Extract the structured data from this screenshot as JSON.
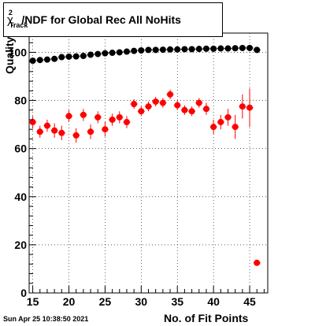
{
  "title": {
    "chi": "χ",
    "sup": "2",
    "sub": "Track",
    "rest": "/NDF for Global Rec All NoHits"
  },
  "ylabel": "Quality",
  "xlabel": "No. of Fit Points",
  "timestamp": "Sun Apr 25 10:38:50 2021",
  "chart_data": {
    "type": "scatter",
    "xlim": [
      14.5,
      47.5
    ],
    "ylim": [
      0,
      108
    ],
    "xticks": [
      15,
      20,
      25,
      30,
      35,
      40,
      45
    ],
    "yticks": [
      0,
      20,
      40,
      60,
      80,
      100
    ],
    "grid": true,
    "series": [
      {
        "color": "#000000",
        "points": [
          {
            "x": 15,
            "y": 96.5,
            "err": 0.8
          },
          {
            "x": 16,
            "y": 96.8,
            "err": 0.8
          },
          {
            "x": 17,
            "y": 97.0,
            "err": 0.8
          },
          {
            "x": 18,
            "y": 97.3,
            "err": 0.8
          },
          {
            "x": 19,
            "y": 98.0,
            "err": 0.8
          },
          {
            "x": 20,
            "y": 98.2,
            "err": 0.8
          },
          {
            "x": 21,
            "y": 98.3,
            "err": 0.8
          },
          {
            "x": 22,
            "y": 98.5,
            "err": 0.8
          },
          {
            "x": 23,
            "y": 99.0,
            "err": 0.8
          },
          {
            "x": 24,
            "y": 99.3,
            "err": 0.8
          },
          {
            "x": 25,
            "y": 99.6,
            "err": 0.8
          },
          {
            "x": 26,
            "y": 99.8,
            "err": 0.8
          },
          {
            "x": 27,
            "y": 100.0,
            "err": 0.8
          },
          {
            "x": 28,
            "y": 100.3,
            "err": 0.8
          },
          {
            "x": 29,
            "y": 100.6,
            "err": 0.8
          },
          {
            "x": 30,
            "y": 100.8,
            "err": 0.8
          },
          {
            "x": 31,
            "y": 101.0,
            "err": 0.8
          },
          {
            "x": 32,
            "y": 101.0,
            "err": 0.8
          },
          {
            "x": 33,
            "y": 101.1,
            "err": 0.8
          },
          {
            "x": 34,
            "y": 101.2,
            "err": 0.8
          },
          {
            "x": 35,
            "y": 101.2,
            "err": 0.8
          },
          {
            "x": 36,
            "y": 101.3,
            "err": 0.8
          },
          {
            "x": 37,
            "y": 101.3,
            "err": 0.8
          },
          {
            "x": 38,
            "y": 101.4,
            "err": 0.8
          },
          {
            "x": 39,
            "y": 101.5,
            "err": 0.8
          },
          {
            "x": 40,
            "y": 101.5,
            "err": 0.8
          },
          {
            "x": 41,
            "y": 101.6,
            "err": 0.8
          },
          {
            "x": 42,
            "y": 101.6,
            "err": 0.8
          },
          {
            "x": 43,
            "y": 101.7,
            "err": 0.8
          },
          {
            "x": 44,
            "y": 101.8,
            "err": 0.8
          },
          {
            "x": 45,
            "y": 101.8,
            "err": 0.8
          },
          {
            "x": 46,
            "y": 101.0,
            "err": 0.8
          }
        ]
      },
      {
        "color": "#ff0000",
        "points": [
          {
            "x": 15,
            "y": 71.0,
            "err": 2.5
          },
          {
            "x": 16,
            "y": 67.0,
            "err": 2.5
          },
          {
            "x": 17,
            "y": 69.5,
            "err": 2.5
          },
          {
            "x": 18,
            "y": 67.5,
            "err": 3.0
          },
          {
            "x": 19,
            "y": 66.5,
            "err": 3.0
          },
          {
            "x": 20,
            "y": 73.5,
            "err": 2.5
          },
          {
            "x": 21,
            "y": 65.5,
            "err": 3.0
          },
          {
            "x": 22,
            "y": 74.0,
            "err": 2.5
          },
          {
            "x": 23,
            "y": 67.0,
            "err": 3.0
          },
          {
            "x": 24,
            "y": 73.0,
            "err": 2.5
          },
          {
            "x": 25,
            "y": 68.0,
            "err": 3.0
          },
          {
            "x": 26,
            "y": 72.0,
            "err": 2.5
          },
          {
            "x": 27,
            "y": 73.0,
            "err": 2.5
          },
          {
            "x": 28,
            "y": 71.0,
            "err": 2.5
          },
          {
            "x": 29,
            "y": 78.5,
            "err": 2.0
          },
          {
            "x": 30,
            "y": 75.5,
            "err": 2.0
          },
          {
            "x": 31,
            "y": 77.5,
            "err": 2.0
          },
          {
            "x": 32,
            "y": 79.5,
            "err": 2.0
          },
          {
            "x": 33,
            "y": 79.0,
            "err": 2.0
          },
          {
            "x": 34,
            "y": 82.5,
            "err": 2.0
          },
          {
            "x": 35,
            "y": 78.0,
            "err": 2.0
          },
          {
            "x": 36,
            "y": 76.0,
            "err": 2.0
          },
          {
            "x": 37,
            "y": 75.5,
            "err": 2.0
          },
          {
            "x": 38,
            "y": 79.0,
            "err": 2.0
          },
          {
            "x": 39,
            "y": 76.5,
            "err": 2.5
          },
          {
            "x": 40,
            "y": 69.0,
            "err": 3.0
          },
          {
            "x": 41,
            "y": 71.0,
            "err": 3.0
          },
          {
            "x": 42,
            "y": 73.0,
            "err": 3.5
          },
          {
            "x": 43,
            "y": 69.0,
            "err": 5.0
          },
          {
            "x": 44,
            "y": 77.5,
            "err": 5.0
          },
          {
            "x": 45,
            "y": 77.0,
            "err": 8.0
          },
          {
            "x": 46,
            "y": 12.5,
            "err": 0.0
          }
        ]
      }
    ]
  }
}
